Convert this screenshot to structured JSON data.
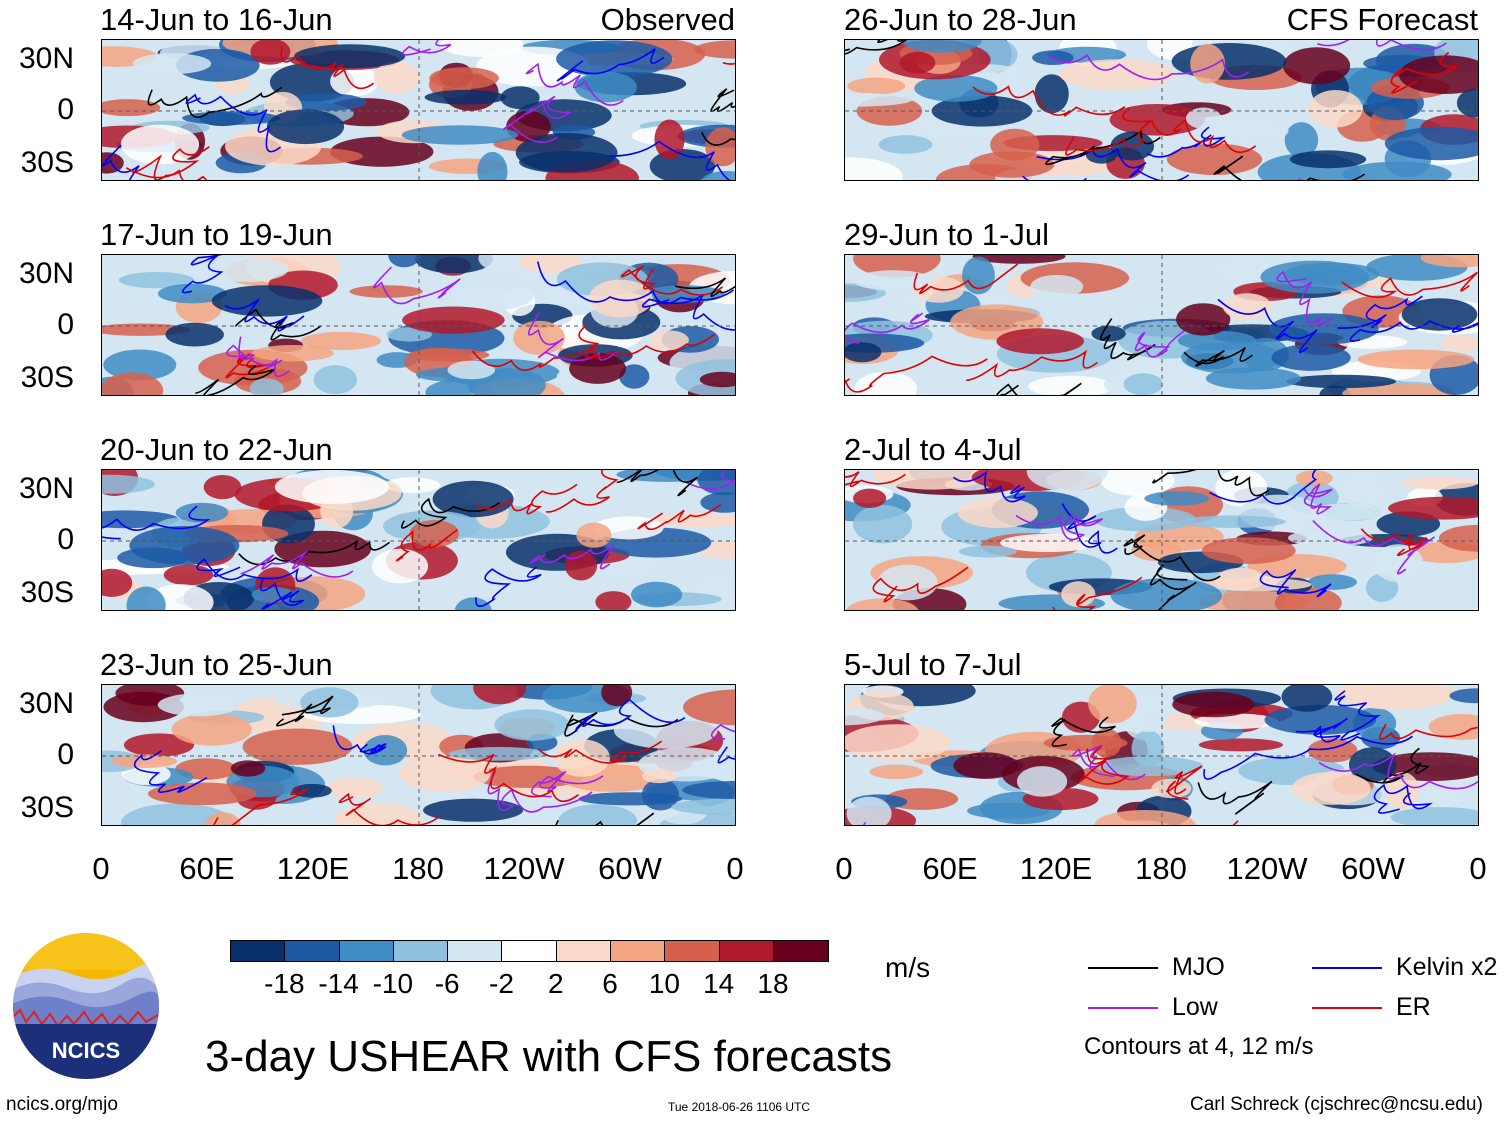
{
  "panels_left": [
    {
      "title": "14-Jun to 16-Jun",
      "tag": "Observed"
    },
    {
      "title": "17-Jun to 19-Jun",
      "tag": ""
    },
    {
      "title": "20-Jun to 22-Jun",
      "tag": ""
    },
    {
      "title": "23-Jun to 25-Jun",
      "tag": ""
    }
  ],
  "panels_right": [
    {
      "title": "26-Jun to 28-Jun",
      "tag": "CFS Forecast"
    },
    {
      "title": "29-Jun to 1-Jul",
      "tag": ""
    },
    {
      "title": "2-Jul to 4-Jul",
      "tag": ""
    },
    {
      "title": "5-Jul to 7-Jul",
      "tag": ""
    }
  ],
  "lat_labels": [
    "30N",
    "0",
    "30S"
  ],
  "lon_labels": [
    "0",
    "60E",
    "120E",
    "180",
    "120W",
    "60W",
    "0"
  ],
  "colorbar": {
    "colors": [
      "#08306b",
      "#1c5aa6",
      "#3f8cc4",
      "#8fc1de",
      "#d4e6f2",
      "#ffffff",
      "#fbd9c8",
      "#f4a582",
      "#d6604d",
      "#b2182b",
      "#67001f"
    ],
    "labels": [
      "-18",
      "-14",
      "-10",
      "-6",
      "-2",
      "2",
      "6",
      "10",
      "14",
      "18"
    ],
    "units": "m/s"
  },
  "legend": {
    "mjo": {
      "label": "MJO",
      "color": "#000000"
    },
    "kelvin": {
      "label": "Kelvin x2",
      "color": "#0000ff"
    },
    "low": {
      "label": "Low",
      "color": "#a020f0"
    },
    "er": {
      "label": "ER",
      "color": "#e00000"
    },
    "note": "Contours at 4, 12 m/s"
  },
  "logo_text": "NCICS",
  "title": "3-day USHEAR with CFS forecasts",
  "footer_left": "ncics.org/mjo",
  "footer_center": "Tue 2018-06-26 1106 UTC",
  "footer_right": "Carl Schreck (cjschrec@ncsu.edu)"
}
